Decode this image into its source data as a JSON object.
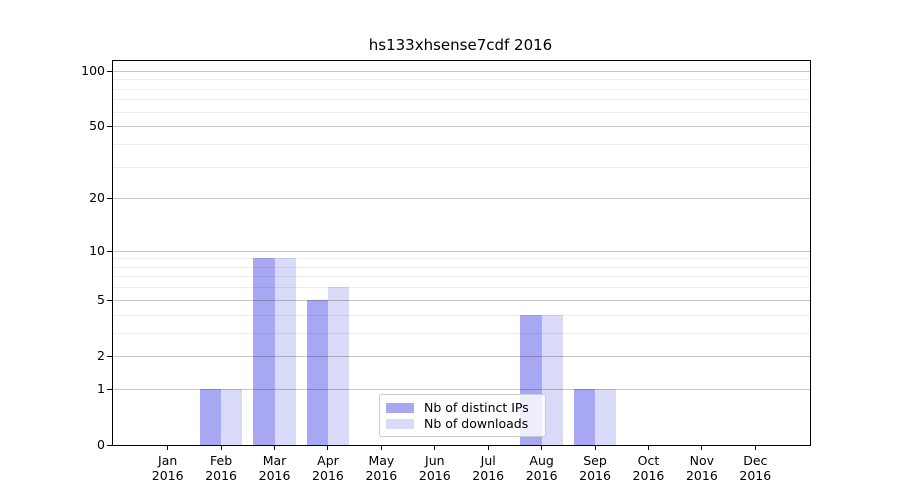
{
  "chart_data": {
    "type": "bar",
    "title": "hs133xhsense7cdf 2016",
    "categories": [
      "Jan",
      "Feb",
      "Mar",
      "Apr",
      "May",
      "Jun",
      "Jul",
      "Aug",
      "Sep",
      "Oct",
      "Nov",
      "Dec"
    ],
    "tick_year": "2016",
    "series": [
      {
        "name": "Nb of distinct IPs",
        "color": "#a7a7f3",
        "values": [
          0,
          1,
          9,
          5,
          0,
          0,
          0,
          4,
          1,
          0,
          0,
          0
        ]
      },
      {
        "name": "Nb of downloads",
        "color": "#d9d9f8",
        "values": [
          0,
          1,
          9,
          6,
          0,
          0,
          0,
          4,
          1,
          0,
          0,
          0
        ]
      }
    ],
    "xlabel": "",
    "ylabel": "",
    "yscale": "log1p",
    "ylim": [
      0,
      113
    ],
    "yticks": [
      0,
      1,
      2,
      5,
      10,
      20,
      50,
      100
    ],
    "yticks_minor": [
      3,
      4,
      6,
      7,
      8,
      9,
      30,
      40,
      60,
      70,
      80,
      90
    ],
    "grid": "major+minor, horizontal, drawn over bars",
    "legend_position": "lower center-right inside plot",
    "background_color": "#ffffff",
    "axis_color": "#000000"
  }
}
